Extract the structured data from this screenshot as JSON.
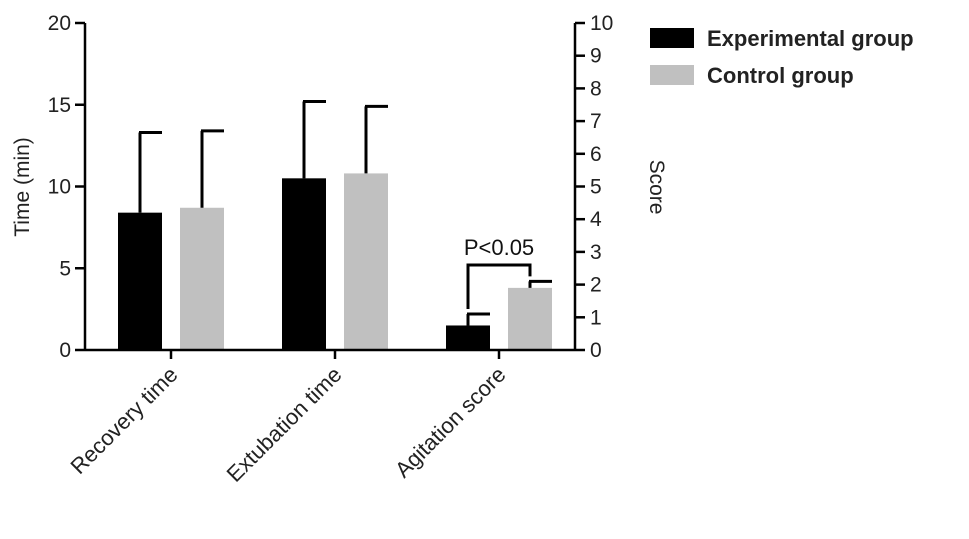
{
  "chart_data": {
    "type": "bar",
    "categories": [
      "Recovery time",
      "Extubation time",
      "Agitation score"
    ],
    "y_left": {
      "label": "Time (min)",
      "lim": [
        0,
        20
      ],
      "ticks": [
        0,
        5,
        10,
        15,
        20
      ]
    },
    "y_right": {
      "label": "Score",
      "lim": [
        0,
        10
      ],
      "ticks": [
        0,
        1,
        2,
        3,
        4,
        5,
        6,
        7,
        8,
        9,
        10
      ]
    },
    "series": [
      {
        "name": "Experimental group",
        "color": "#000000",
        "values": [
          8.4,
          10.5,
          0.75
        ],
        "errors": [
          4.9,
          4.7,
          0.35
        ],
        "axis": [
          "left",
          "left",
          "right"
        ]
      },
      {
        "name": "Control group",
        "color": "#c0c0c0",
        "values": [
          8.7,
          10.8,
          1.9
        ],
        "errors": [
          4.7,
          4.1,
          0.2
        ],
        "axis": [
          "left",
          "left",
          "right"
        ]
      }
    ],
    "annotation": {
      "text": "P<0.05",
      "category": "Agitation score"
    },
    "legend_position": "top-right",
    "grid": false
  }
}
